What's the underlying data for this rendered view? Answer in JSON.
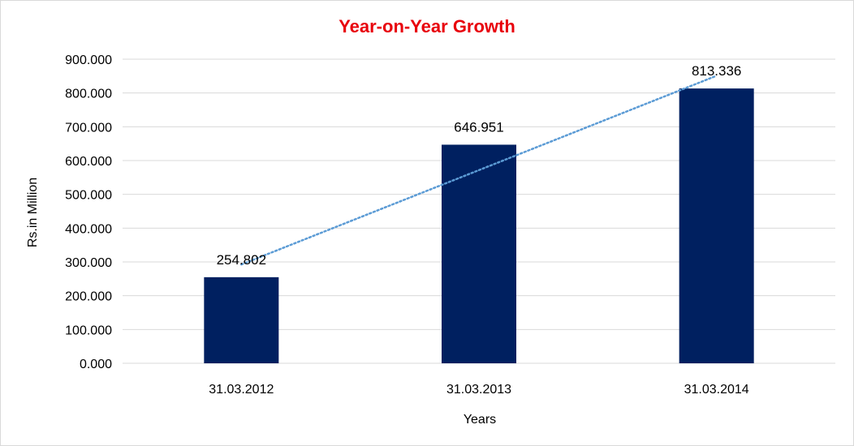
{
  "chart_data": {
    "type": "bar",
    "title": "Year-on-Year Growth",
    "xlabel": "Years",
    "ylabel": "Rs.in Million",
    "categories": [
      "31.03.2012",
      "31.03.2013",
      "31.03.2014"
    ],
    "values": [
      254.802,
      646.951,
      813.336
    ],
    "value_labels": [
      "254.802",
      "646.951",
      "813.336"
    ],
    "ylim": [
      0,
      900
    ],
    "yticks": [
      {
        "value": 0,
        "label": "0.000"
      },
      {
        "value": 100,
        "label": "100.000"
      },
      {
        "value": 200,
        "label": "200.000"
      },
      {
        "value": 300,
        "label": "300.000"
      },
      {
        "value": 400,
        "label": "400.000"
      },
      {
        "value": 500,
        "label": "500.000"
      },
      {
        "value": 600,
        "label": "600.000"
      },
      {
        "value": 700,
        "label": "700.000"
      },
      {
        "value": 800,
        "label": "800.000"
      },
      {
        "value": 900,
        "label": "900.000"
      }
    ],
    "grid": true,
    "trendline": "linear",
    "colors": {
      "bar": "#002060",
      "trendline": "#5b9bd5",
      "grid": "#d9d9d9",
      "title": "#e8000b"
    }
  }
}
